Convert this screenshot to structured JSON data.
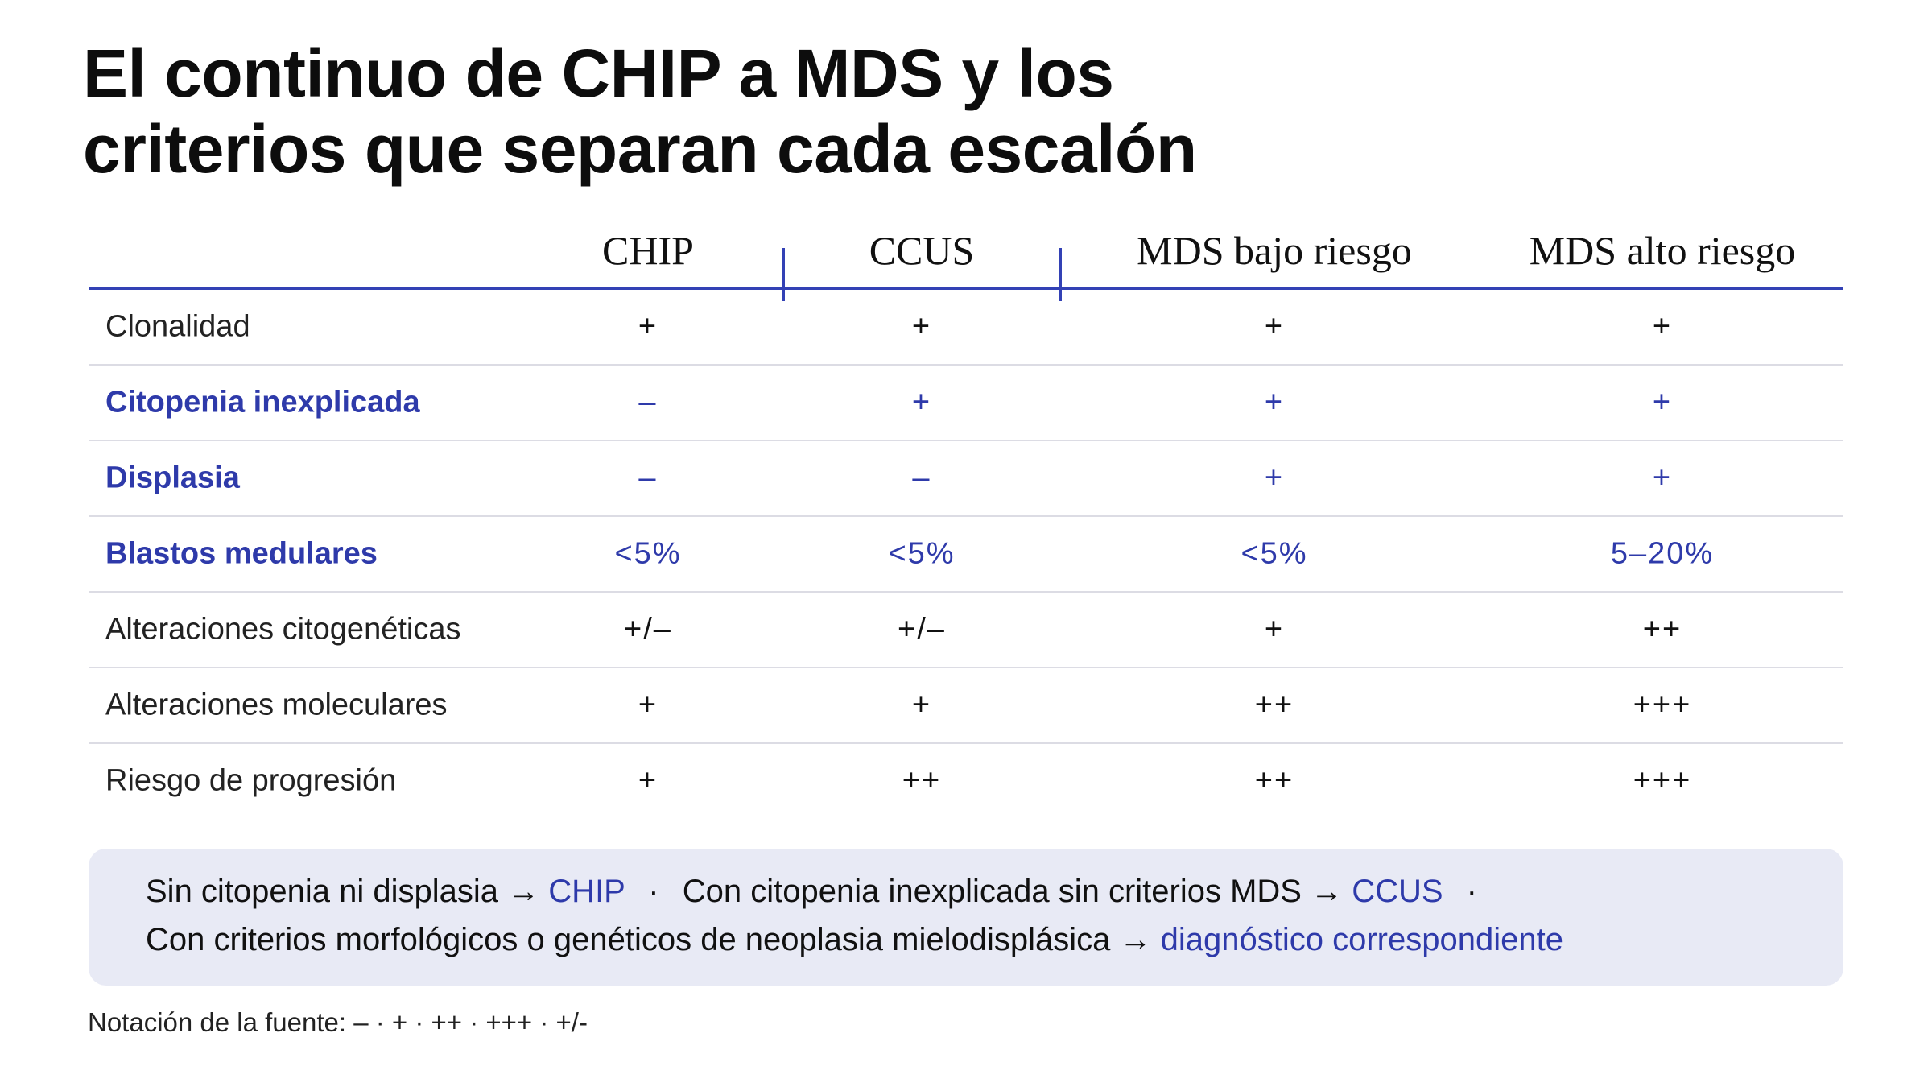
{
  "title": {
    "line1": "El continuo de CHIP a MDS y los",
    "line2": "criterios que separan cada escalón"
  },
  "table": {
    "columns": [
      "CHIP",
      "CCUS",
      "MDS bajo riesgo",
      "MDS alto riesgo"
    ],
    "rows": [
      {
        "label": "Clonalidad",
        "accent": false,
        "values": [
          "+",
          "+",
          "+",
          "+"
        ]
      },
      {
        "label": "Citopenia inexplicada",
        "accent": true,
        "values": [
          "–",
          "+",
          "+",
          "+"
        ]
      },
      {
        "label": "Displasia",
        "accent": true,
        "values": [
          "–",
          "–",
          "+",
          "+"
        ]
      },
      {
        "label": "Blastos medulares",
        "accent": true,
        "values": [
          "<5%",
          "<5%",
          "<5%",
          "5–20%"
        ]
      },
      {
        "label": "Alteraciones citogenéticas",
        "accent": false,
        "values": [
          "+/–",
          "+/–",
          "+",
          "++"
        ]
      },
      {
        "label": "Alteraciones moleculares",
        "accent": false,
        "values": [
          "+",
          "+",
          "++",
          "+++"
        ]
      },
      {
        "label": "Riesgo de progresión",
        "accent": false,
        "values": [
          "+",
          "++",
          "++",
          "+++"
        ]
      }
    ]
  },
  "note": {
    "line1_part1": "Sin citopenia ni displasia →",
    "line1_hl1": "CHIP",
    "bullet": "·",
    "line1_part2": "Con citopenia inexplicada sin criterios MDS →",
    "line1_hl2": "CCUS",
    "line2_part1": "Con criterios morfológicos o genéticos de neoplasia mielodisplásica →",
    "line2_hl": "diagnóstico correspondiente"
  },
  "source_note": "Notación de la fuente: – · + · ++ · +++ · +/-",
  "colors": {
    "accent": "#2e3aaa",
    "rule": "#3341b5",
    "note_bg": "#e8eaf5",
    "row_divider": "#dcdce4"
  }
}
